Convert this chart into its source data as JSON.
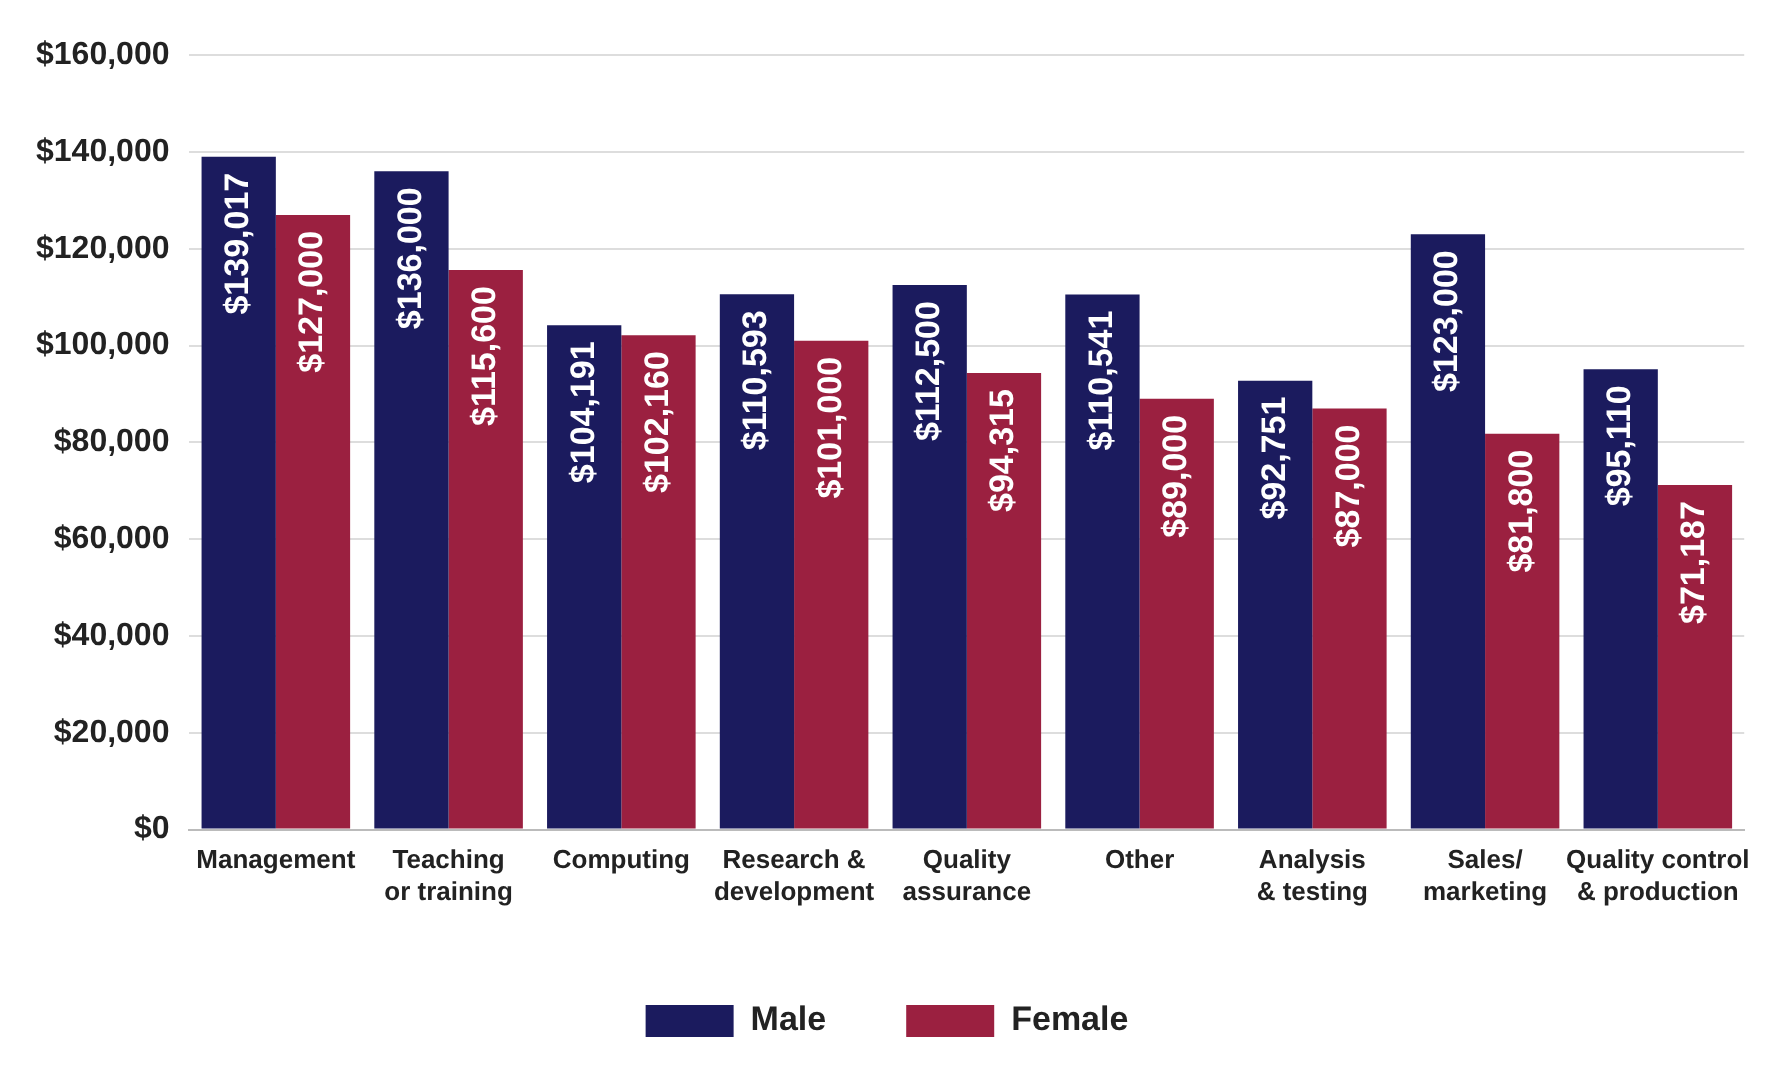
{
  "chart_data": {
    "type": "bar",
    "categories": [
      "Management",
      "Teaching or training",
      "Computing",
      "Research & development",
      "Quality assurance",
      "Other",
      "Analysis & testing",
      "Sales/ marketing",
      "Quality control & production"
    ],
    "series": [
      {
        "name": "Male",
        "color": "#1b1b5e",
        "values": [
          139017,
          136000,
          104191,
          110593,
          112500,
          110541,
          92751,
          123000,
          95110
        ],
        "value_labels": [
          "$139,017",
          "$136,000",
          "$104,191",
          "$110,593",
          "$112,500",
          "$110,541",
          "$92,751",
          "$123,000",
          "$95,110"
        ]
      },
      {
        "name": "Female",
        "color": "#9b2040",
        "values": [
          127000,
          115600,
          102160,
          101000,
          94315,
          89000,
          87000,
          81800,
          71187
        ],
        "value_labels": [
          "$127,000",
          "$115,600",
          "$102,160",
          "$101,000",
          "$94,315",
          "$89,000",
          "$87,000",
          "$81,800",
          "$71,187"
        ]
      }
    ],
    "ylim": [
      0,
      160000
    ],
    "yticks": [
      {
        "value": 0,
        "label": "$0"
      },
      {
        "value": 20000,
        "label": "$20,000"
      },
      {
        "value": 40000,
        "label": "$40,000"
      },
      {
        "value": 60000,
        "label": "$60,000"
      },
      {
        "value": 80000,
        "label": "$80,000"
      },
      {
        "value": 100000,
        "label": "$100,000"
      },
      {
        "value": 120000,
        "label": "$120,000"
      },
      {
        "value": 140000,
        "label": "$140,000"
      },
      {
        "value": 160000,
        "label": "$160,000"
      }
    ],
    "grid": "y",
    "legend": "bottom"
  }
}
